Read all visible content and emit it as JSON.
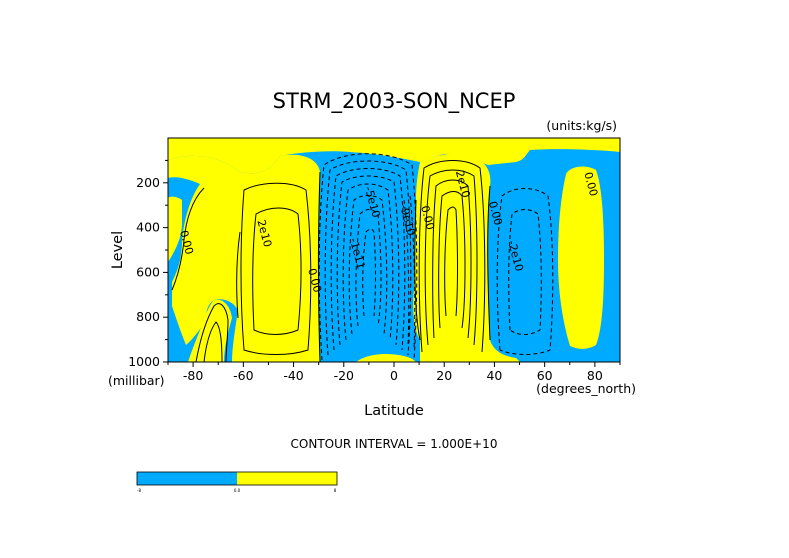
{
  "chart_data": {
    "type": "contour",
    "title": "STRM_2003-SON_NCEP",
    "units": "(units:kg/s)",
    "xlabel": "Latitude",
    "x_units": "(degrees_north)",
    "ylabel": "Level",
    "y_units": "(millibar)",
    "xlim": [
      -90,
      90
    ],
    "ylim": [
      1000,
      0
    ],
    "x_ticks": [
      -80,
      -60,
      -40,
      -20,
      0,
      20,
      40,
      60,
      80
    ],
    "y_ticks": [
      200,
      400,
      600,
      800,
      1000
    ],
    "contour_interval_label": "CONTOUR INTERVAL = 1.000E+10",
    "contour_labels": [
      {
        "text": "0.00",
        "lat": -84,
        "lev": 470
      },
      {
        "text": "2e10",
        "lat": -53,
        "lev": 430
      },
      {
        "text": "0.00",
        "lat": -33,
        "lev": 640
      },
      {
        "text": "-5e10",
        "lat": -10,
        "lev": 290
      },
      {
        "text": "-1e11",
        "lat": -16,
        "lev": 520
      },
      {
        "text": "-9e10",
        "lat": 4,
        "lev": 370
      },
      {
        "text": "0.00",
        "lat": 12,
        "lev": 360
      },
      {
        "text": "2e10",
        "lat": 26,
        "lev": 210
      },
      {
        "text": "0.00",
        "lat": 39,
        "lev": 340
      },
      {
        "text": "-2e10",
        "lat": 47,
        "lev": 530
      },
      {
        "text": "0.00",
        "lat": 77,
        "lev": 210
      }
    ],
    "colorbar": {
      "colors": [
        "#00aaff",
        "#ffff00"
      ],
      "labels": [
        "-8",
        "0.0",
        "8"
      ]
    },
    "fill_colors": {
      "negative": "#00aaff",
      "positive": "#ffff00"
    }
  }
}
